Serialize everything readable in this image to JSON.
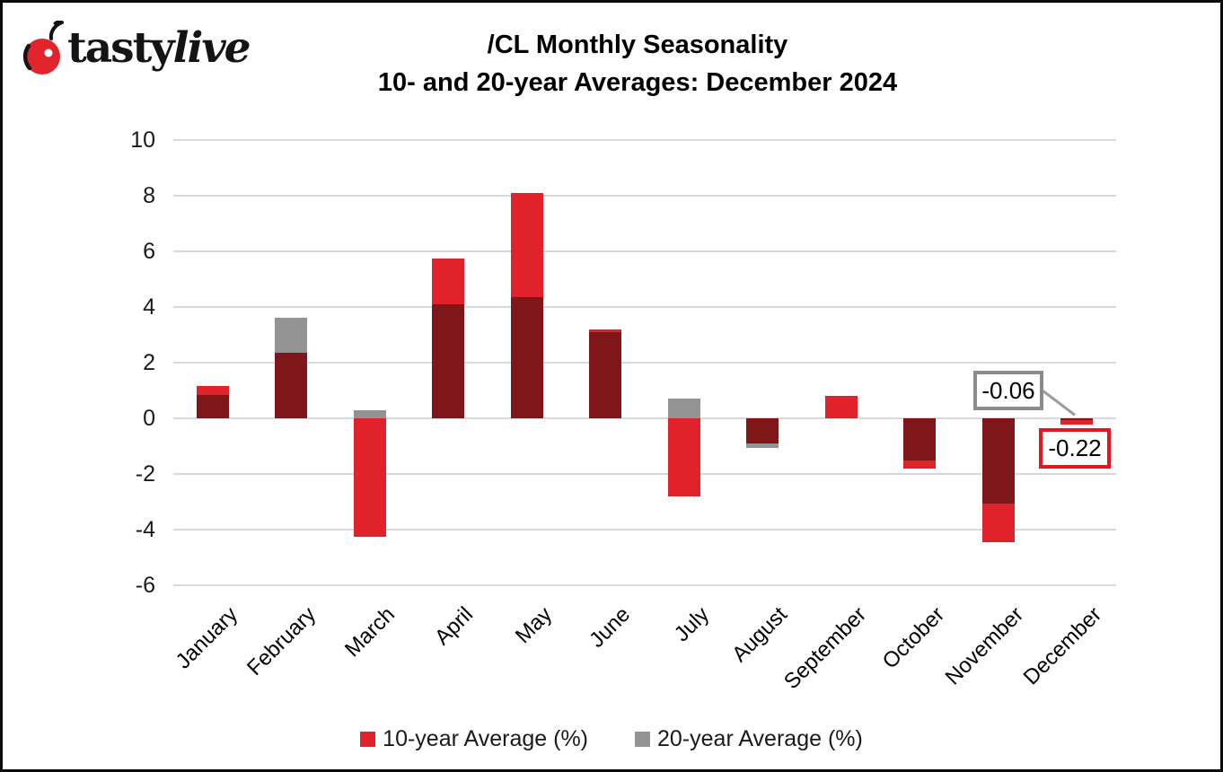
{
  "logo": {
    "brand_first": "tasty",
    "brand_second": "live",
    "cherry_color": "#E1242B"
  },
  "header": {
    "title_line1": "/CL Monthly Seasonality",
    "title_line2": "10- and 20-year Averages: December 2024"
  },
  "chart_data": {
    "type": "bar",
    "categories": [
      "January",
      "February",
      "March",
      "April",
      "May",
      "June",
      "July",
      "August",
      "September",
      "October",
      "November",
      "December"
    ],
    "series": [
      {
        "name": "10-year Average (%)",
        "color": "#E2222A",
        "values": [
          1.15,
          2.35,
          -4.25,
          5.75,
          8.1,
          3.2,
          -2.8,
          -0.9,
          0.8,
          -1.8,
          -4.45,
          -0.22
        ]
      },
      {
        "name": "20-year Average (%)",
        "color": "#939393",
        "values": [
          0.85,
          3.6,
          0.3,
          4.1,
          4.35,
          3.1,
          0.7,
          -1.05,
          0,
          -1.5,
          -3.05,
          -0.06
        ]
      }
    ],
    "overlap_color": "#7F1619",
    "gridline_color": "#D9D9D9",
    "yticks": [
      10,
      8,
      6,
      4,
      2,
      0,
      -2,
      -4,
      -6
    ],
    "ylim": [
      -6,
      10
    ],
    "grid": true,
    "legend_position": "bottom"
  },
  "annotations": [
    {
      "label": "-0.06",
      "month": "December",
      "series": "20-year Average (%)",
      "box_border": "#8C8C8C"
    },
    {
      "label": "-0.22",
      "month": "December",
      "series": "10-year Average (%)",
      "box_border": "#E8141E"
    }
  ],
  "legend": {
    "items": [
      {
        "label": "10-year Average (%)",
        "color": "#E2222A"
      },
      {
        "label": "20-year Average (%)",
        "color": "#939393"
      }
    ]
  }
}
